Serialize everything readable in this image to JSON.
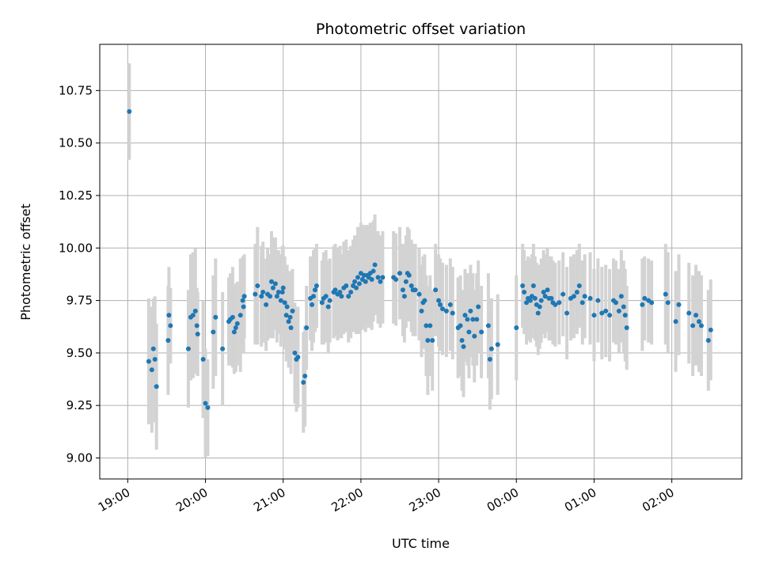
{
  "chart_data": {
    "type": "scatter",
    "title": "Photometric offset variation",
    "xlabel": "UTC time",
    "ylabel": "Photometric offset",
    "x_ticks": [
      {
        "value": 0,
        "label": "19:00"
      },
      {
        "value": 1,
        "label": "20:00"
      },
      {
        "value": 2,
        "label": "21:00"
      },
      {
        "value": 3,
        "label": "22:00"
      },
      {
        "value": 4,
        "label": "23:00"
      },
      {
        "value": 5,
        "label": "00:00"
      },
      {
        "value": 6,
        "label": "01:00"
      },
      {
        "value": 7,
        "label": "02:00"
      }
    ],
    "y_ticks": [
      "9.00",
      "9.25",
      "9.50",
      "9.75",
      "10.00",
      "10.25",
      "10.50",
      "10.75"
    ],
    "xlim": [
      -0.36,
      7.9
    ],
    "ylim": [
      8.9,
      10.97
    ],
    "grid": true,
    "colors": {
      "point": "#1f77b4",
      "errorbar": "#d3d3d3",
      "grid": "#b0b0b0"
    },
    "points": [
      [
        0.02,
        10.65,
        0.23
      ],
      [
        0.27,
        9.46,
        0.3
      ],
      [
        0.31,
        9.42,
        0.3
      ],
      [
        0.33,
        9.52,
        0.24
      ],
      [
        0.35,
        9.47,
        0.3
      ],
      [
        0.37,
        9.34,
        0.3
      ],
      [
        0.52,
        9.56,
        0.26
      ],
      [
        0.53,
        9.68,
        0.23
      ],
      [
        0.55,
        9.63,
        0.18
      ],
      [
        0.78,
        9.52,
        0.28
      ],
      [
        0.81,
        9.67,
        0.3
      ],
      [
        0.84,
        9.68,
        0.3
      ],
      [
        0.87,
        9.7,
        0.3
      ],
      [
        0.89,
        9.63,
        0.18
      ],
      [
        0.9,
        9.59,
        0.2
      ],
      [
        0.97,
        9.47,
        0.28
      ],
      [
        1.0,
        9.26,
        0.26
      ],
      [
        1.03,
        9.24,
        0.23
      ],
      [
        1.1,
        9.6,
        0.27
      ],
      [
        1.13,
        9.67,
        0.28
      ],
      [
        1.22,
        9.52,
        0.27
      ],
      [
        1.3,
        9.65,
        0.21
      ],
      [
        1.32,
        9.66,
        0.22
      ],
      [
        1.35,
        9.67,
        0.24
      ],
      [
        1.37,
        9.6,
        0.2
      ],
      [
        1.39,
        9.62,
        0.21
      ],
      [
        1.41,
        9.64,
        0.2
      ],
      [
        1.45,
        9.68,
        0.27
      ],
      [
        1.48,
        9.75,
        0.21
      ],
      [
        1.49,
        9.72,
        0.22
      ],
      [
        1.5,
        9.77,
        0.2
      ],
      [
        1.64,
        9.78,
        0.24
      ],
      [
        1.67,
        9.82,
        0.28
      ],
      [
        1.72,
        9.77,
        0.24
      ],
      [
        1.74,
        9.79,
        0.24
      ],
      [
        1.78,
        9.73,
        0.22
      ],
      [
        1.8,
        9.78,
        0.22
      ],
      [
        1.83,
        9.77,
        0.2
      ],
      [
        1.85,
        9.84,
        0.24
      ],
      [
        1.87,
        9.81,
        0.24
      ],
      [
        1.9,
        9.83,
        0.22
      ],
      [
        1.92,
        9.77,
        0.22
      ],
      [
        1.94,
        9.79,
        0.2
      ],
      [
        1.97,
        9.75,
        0.22
      ],
      [
        1.99,
        9.79,
        0.22
      ],
      [
        2.0,
        9.81,
        0.2
      ],
      [
        2.02,
        9.74,
        0.22
      ],
      [
        2.04,
        9.68,
        0.22
      ],
      [
        2.05,
        9.72,
        0.2
      ],
      [
        2.07,
        9.65,
        0.22
      ],
      [
        2.09,
        9.67,
        0.22
      ],
      [
        2.1,
        9.62,
        0.22
      ],
      [
        2.12,
        9.7,
        0.2
      ],
      [
        2.15,
        9.5,
        0.24
      ],
      [
        2.17,
        9.47,
        0.25
      ],
      [
        2.19,
        9.48,
        0.24
      ],
      [
        2.26,
        9.36,
        0.24
      ],
      [
        2.28,
        9.39,
        0.24
      ],
      [
        2.3,
        9.62,
        0.2
      ],
      [
        2.35,
        9.76,
        0.2
      ],
      [
        2.37,
        9.73,
        0.22
      ],
      [
        2.39,
        9.77,
        0.22
      ],
      [
        2.41,
        9.8,
        0.2
      ],
      [
        2.43,
        9.82,
        0.2
      ],
      [
        2.5,
        9.74,
        0.2
      ],
      [
        2.52,
        9.76,
        0.22
      ],
      [
        2.55,
        9.77,
        0.22
      ],
      [
        2.58,
        9.72,
        0.22
      ],
      [
        2.6,
        9.75,
        0.2
      ],
      [
        2.65,
        9.79,
        0.22
      ],
      [
        2.67,
        9.8,
        0.22
      ],
      [
        2.7,
        9.78,
        0.22
      ],
      [
        2.73,
        9.79,
        0.22
      ],
      [
        2.75,
        9.77,
        0.2
      ],
      [
        2.78,
        9.81,
        0.22
      ],
      [
        2.81,
        9.82,
        0.22
      ],
      [
        2.84,
        9.77,
        0.22
      ],
      [
        2.87,
        9.79,
        0.22
      ],
      [
        2.9,
        9.82,
        0.22
      ],
      [
        2.92,
        9.84,
        0.22
      ],
      [
        2.94,
        9.81,
        0.22
      ],
      [
        2.96,
        9.86,
        0.24
      ],
      [
        2.98,
        9.83,
        0.24
      ],
      [
        3.0,
        9.88,
        0.24
      ],
      [
        3.02,
        9.85,
        0.24
      ],
      [
        3.04,
        9.87,
        0.24
      ],
      [
        3.06,
        9.84,
        0.24
      ],
      [
        3.08,
        9.87,
        0.24
      ],
      [
        3.1,
        9.86,
        0.24
      ],
      [
        3.12,
        9.88,
        0.24
      ],
      [
        3.14,
        9.85,
        0.24
      ],
      [
        3.16,
        9.89,
        0.24
      ],
      [
        3.18,
        9.92,
        0.24
      ],
      [
        3.22,
        9.86,
        0.22
      ],
      [
        3.25,
        9.84,
        0.22
      ],
      [
        3.28,
        9.86,
        0.22
      ],
      [
        3.42,
        9.86,
        0.22
      ],
      [
        3.45,
        9.85,
        0.22
      ],
      [
        3.5,
        9.88,
        0.22
      ],
      [
        3.54,
        9.8,
        0.22
      ],
      [
        3.56,
        9.77,
        0.22
      ],
      [
        3.58,
        9.84,
        0.22
      ],
      [
        3.6,
        9.88,
        0.22
      ],
      [
        3.62,
        9.87,
        0.22
      ],
      [
        3.65,
        9.82,
        0.22
      ],
      [
        3.67,
        9.8,
        0.22
      ],
      [
        3.7,
        9.8,
        0.22
      ],
      [
        3.75,
        9.78,
        0.22
      ],
      [
        3.78,
        9.7,
        0.22
      ],
      [
        3.8,
        9.74,
        0.22
      ],
      [
        3.82,
        9.75,
        0.22
      ],
      [
        3.84,
        9.63,
        0.24
      ],
      [
        3.86,
        9.56,
        0.26
      ],
      [
        3.89,
        9.63,
        0.24
      ],
      [
        3.92,
        9.56,
        0.24
      ],
      [
        3.96,
        9.8,
        0.22
      ],
      [
        4.0,
        9.75,
        0.22
      ],
      [
        4.02,
        9.73,
        0.22
      ],
      [
        4.05,
        9.71,
        0.22
      ],
      [
        4.1,
        9.7,
        0.22
      ],
      [
        4.15,
        9.73,
        0.22
      ],
      [
        4.18,
        9.69,
        0.22
      ],
      [
        4.25,
        9.62,
        0.24
      ],
      [
        4.28,
        9.63,
        0.24
      ],
      [
        4.3,
        9.56,
        0.24
      ],
      [
        4.32,
        9.53,
        0.24
      ],
      [
        4.34,
        9.68,
        0.22
      ],
      [
        4.37,
        9.66,
        0.22
      ],
      [
        4.39,
        9.6,
        0.22
      ],
      [
        4.41,
        9.7,
        0.22
      ],
      [
        4.44,
        9.66,
        0.22
      ],
      [
        4.46,
        9.58,
        0.22
      ],
      [
        4.49,
        9.66,
        0.22
      ],
      [
        4.51,
        9.72,
        0.22
      ],
      [
        4.55,
        9.6,
        0.22
      ],
      [
        4.64,
        9.63,
        0.25
      ],
      [
        4.66,
        9.47,
        0.24
      ],
      [
        4.68,
        9.52,
        0.24
      ],
      [
        4.76,
        9.54,
        0.24
      ],
      [
        5.0,
        9.62,
        0.25
      ],
      [
        5.08,
        9.82,
        0.2
      ],
      [
        5.1,
        9.79,
        0.2
      ],
      [
        5.13,
        9.74,
        0.2
      ],
      [
        5.15,
        9.76,
        0.2
      ],
      [
        5.18,
        9.75,
        0.2
      ],
      [
        5.2,
        9.77,
        0.2
      ],
      [
        5.22,
        9.82,
        0.2
      ],
      [
        5.24,
        9.76,
        0.2
      ],
      [
        5.26,
        9.73,
        0.2
      ],
      [
        5.28,
        9.69,
        0.2
      ],
      [
        5.3,
        9.72,
        0.2
      ],
      [
        5.32,
        9.75,
        0.2
      ],
      [
        5.35,
        9.79,
        0.2
      ],
      [
        5.37,
        9.77,
        0.2
      ],
      [
        5.4,
        9.8,
        0.2
      ],
      [
        5.42,
        9.76,
        0.2
      ],
      [
        5.45,
        9.76,
        0.2
      ],
      [
        5.47,
        9.74,
        0.2
      ],
      [
        5.5,
        9.73,
        0.2
      ],
      [
        5.55,
        9.74,
        0.2
      ],
      [
        5.6,
        9.78,
        0.2
      ],
      [
        5.65,
        9.69,
        0.22
      ],
      [
        5.7,
        9.76,
        0.2
      ],
      [
        5.74,
        9.77,
        0.2
      ],
      [
        5.78,
        9.79,
        0.2
      ],
      [
        5.81,
        9.82,
        0.2
      ],
      [
        5.85,
        9.74,
        0.2
      ],
      [
        5.88,
        9.77,
        0.2
      ],
      [
        5.95,
        9.76,
        0.22
      ],
      [
        6.0,
        9.68,
        0.22
      ],
      [
        6.05,
        9.75,
        0.2
      ],
      [
        6.1,
        9.69,
        0.22
      ],
      [
        6.15,
        9.7,
        0.22
      ],
      [
        6.2,
        9.68,
        0.22
      ],
      [
        6.25,
        9.75,
        0.2
      ],
      [
        6.28,
        9.74,
        0.2
      ],
      [
        6.32,
        9.7,
        0.2
      ],
      [
        6.35,
        9.77,
        0.22
      ],
      [
        6.38,
        9.72,
        0.22
      ],
      [
        6.4,
        9.68,
        0.22
      ],
      [
        6.42,
        9.62,
        0.2
      ],
      [
        6.62,
        9.73,
        0.22
      ],
      [
        6.65,
        9.76,
        0.2
      ],
      [
        6.7,
        9.75,
        0.2
      ],
      [
        6.74,
        9.74,
        0.2
      ],
      [
        6.92,
        9.78,
        0.24
      ],
      [
        6.95,
        9.74,
        0.24
      ],
      [
        7.05,
        9.65,
        0.24
      ],
      [
        7.09,
        9.73,
        0.24
      ],
      [
        7.22,
        9.69,
        0.24
      ],
      [
        7.27,
        9.63,
        0.24
      ],
      [
        7.31,
        9.68,
        0.24
      ],
      [
        7.35,
        9.65,
        0.24
      ],
      [
        7.38,
        9.63,
        0.24
      ],
      [
        7.47,
        9.56,
        0.24
      ],
      [
        7.5,
        9.61,
        0.24
      ]
    ]
  }
}
